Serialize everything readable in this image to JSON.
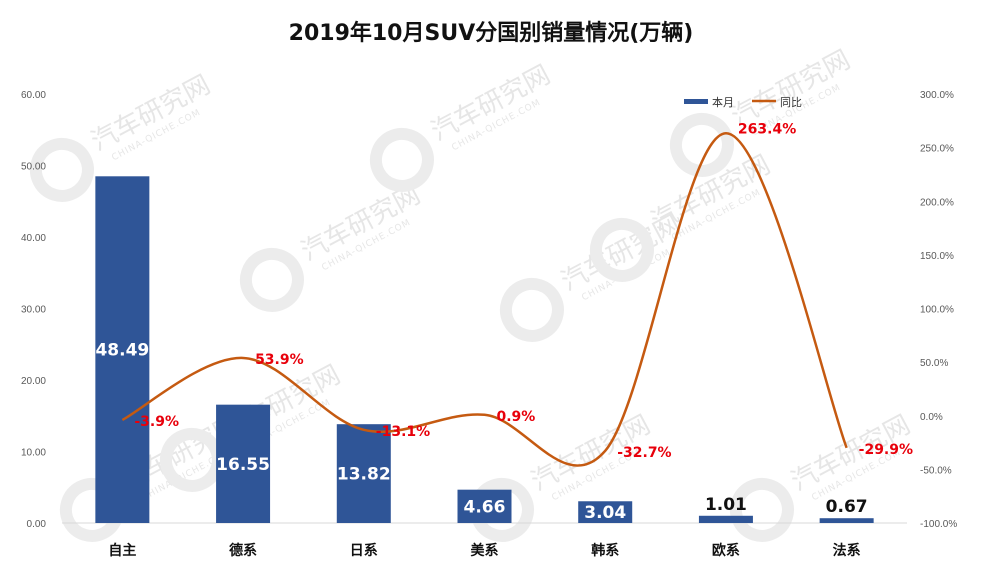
{
  "chart_data": {
    "type": "bar+line",
    "title": "2019年10月SUV分国别销量情况(万辆)",
    "categories": [
      "自主",
      "德系",
      "日系",
      "美系",
      "韩系",
      "欧系",
      "法系"
    ],
    "series": [
      {
        "name": "本月",
        "type": "bar",
        "axis": "left",
        "color": "#2F5597",
        "values": [
          48.49,
          16.55,
          13.82,
          4.66,
          3.04,
          1.01,
          0.67
        ],
        "labels": [
          "48.49",
          "16.55",
          "13.82",
          "4.66",
          "3.04",
          "1.01",
          "0.67"
        ]
      },
      {
        "name": "同比",
        "type": "line",
        "axis": "right",
        "color": "#C55A11",
        "values": [
          -3.9,
          53.9,
          -13.1,
          0.9,
          -32.7,
          263.4,
          -29.9
        ],
        "labels": [
          "-3.9%",
          "53.9%",
          "-13.1%",
          "0.9%",
          "-32.7%",
          "263.4%",
          "-29.9%"
        ]
      }
    ],
    "y_left": {
      "range": [
        0,
        60
      ],
      "ticks": [
        0,
        10,
        20,
        30,
        40,
        50,
        60
      ],
      "tick_labels": [
        "0.00",
        "10.00",
        "20.00",
        "30.00",
        "40.00",
        "50.00",
        "60.00"
      ]
    },
    "y_right": {
      "range": [
        -100,
        300
      ],
      "ticks": [
        -100,
        -50,
        0,
        50,
        100,
        150,
        200,
        250,
        300
      ],
      "tick_labels": [
        "-100.0%",
        "-50.0%",
        "0.0%",
        "50.0%",
        "100.0%",
        "150.0%",
        "200.0%",
        "250.0%",
        "300.0%"
      ]
    },
    "legend": {
      "position": "top-right",
      "entries": [
        "本月",
        "同比"
      ]
    },
    "grid": false,
    "label_color": "#E8000B"
  },
  "watermark": {
    "text": "汽车研究网",
    "subtext": "CHINA-QICHE.COM"
  }
}
